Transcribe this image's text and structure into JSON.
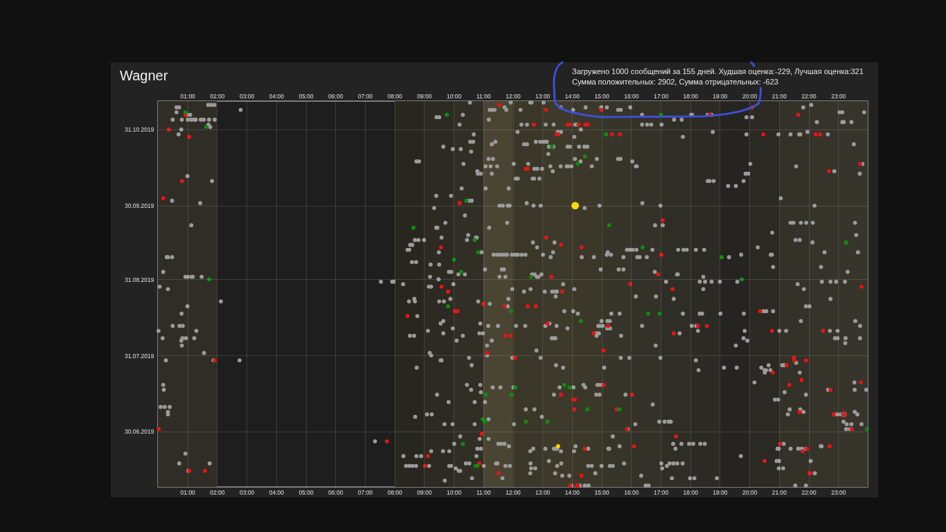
{
  "chart_data": {
    "type": "scatter",
    "orientation": "horizontal",
    "title": "Wagner",
    "annotations": [
      "Загружено 1000 сообщений за 155 дней. Худшая оценка:-229, Лучшая оценка:321",
      "Сумма положительных: 2902, Сумма отрицательных: -623"
    ],
    "xlim": [
      0,
      24
    ],
    "xticks": [
      {
        "value": 1,
        "label": "01:00"
      },
      {
        "value": 2,
        "label": "02:00"
      },
      {
        "value": 3,
        "label": "03:00"
      },
      {
        "value": 4,
        "label": "04:00"
      },
      {
        "value": 5,
        "label": "05:00"
      },
      {
        "value": 6,
        "label": "06:00"
      },
      {
        "value": 7,
        "label": "07:00"
      },
      {
        "value": 8,
        "label": "08:00"
      },
      {
        "value": 9,
        "label": "09:00"
      },
      {
        "value": 10,
        "label": "10:00"
      },
      {
        "value": 11,
        "label": "11:00"
      },
      {
        "value": 12,
        "label": "12:00"
      },
      {
        "value": 13,
        "label": "13:00"
      },
      {
        "value": 14,
        "label": "14:00"
      },
      {
        "value": 15,
        "label": "15:00"
      },
      {
        "value": 16,
        "label": "16:00"
      },
      {
        "value": 17,
        "label": "17:00"
      },
      {
        "value": 18,
        "label": "18:00"
      },
      {
        "value": 19,
        "label": "19:00"
      },
      {
        "value": 20,
        "label": "20:00"
      },
      {
        "value": 21,
        "label": "21:00"
      },
      {
        "value": 22,
        "label": "22:00"
      },
      {
        "value": 23,
        "label": "23:00"
      }
    ],
    "x2lim": [
      0,
      24
    ],
    "x2ticks": [
      {
        "value": 1,
        "label": "01:00"
      },
      {
        "value": 2,
        "label": "02:00"
      },
      {
        "value": 3,
        "label": "03:00"
      },
      {
        "value": 4,
        "label": "04:00"
      },
      {
        "value": 5,
        "label": "05:00"
      },
      {
        "value": 6,
        "label": "06:00"
      },
      {
        "value": 7,
        "label": "07:00"
      },
      {
        "value": 8,
        "label": "08:00"
      },
      {
        "value": 9,
        "label": "09:00"
      },
      {
        "value": 10,
        "label": "10:00"
      },
      {
        "value": 11,
        "label": "11:00"
      },
      {
        "value": 12,
        "label": "12:00"
      },
      {
        "value": 13,
        "label": "13:00"
      },
      {
        "value": 14,
        "label": "14:00"
      },
      {
        "value": 15,
        "label": "15:00"
      },
      {
        "value": 16,
        "label": "16:00"
      },
      {
        "value": 17,
        "label": "17:00"
      },
      {
        "value": 18,
        "label": "18:00"
      },
      {
        "value": 19,
        "label": "19:00"
      },
      {
        "value": 20,
        "label": "20:00"
      },
      {
        "value": 21,
        "label": "21:00"
      },
      {
        "value": 22,
        "label": "22:00"
      },
      {
        "value": 23,
        "label": "23:00"
      }
    ],
    "ylim": [
      "2019-06-07T10:00",
      "2019-11-11T13:00"
    ],
    "yticks": [
      {
        "value": "2019-06-30",
        "label": "30.06.2019"
      },
      {
        "value": "2019-07-31",
        "label": "31.07.2019"
      },
      {
        "value": "2019-08-31",
        "label": "31.08.2019"
      },
      {
        "value": "2019-09-30",
        "label": "30.09.2019"
      },
      {
        "value": "2019-10-31",
        "label": "31.10.2019"
      }
    ],
    "grid": true,
    "marker": "circle",
    "bands": [
      {
        "axis": "x",
        "from": 0,
        "to": 2,
        "color": "#2f2d26"
      },
      {
        "axis": "x",
        "from": 8,
        "to": 9,
        "color": "#28271f"
      },
      {
        "axis": "x",
        "from": 9,
        "to": 10,
        "color": "#2c2a22"
      },
      {
        "axis": "x",
        "from": 10,
        "to": 11,
        "color": "#302e25"
      },
      {
        "axis": "x",
        "from": 11,
        "to": 12,
        "color": "#4a4533"
      },
      {
        "axis": "x",
        "from": 12,
        "to": 13,
        "color": "#3a3729"
      },
      {
        "axis": "x",
        "from": 13,
        "to": 14,
        "color": "#3d3a2b"
      },
      {
        "axis": "x",
        "from": 14,
        "to": 15,
        "color": "#3b382a"
      },
      {
        "axis": "x",
        "from": 15,
        "to": 16,
        "color": "#37352a"
      },
      {
        "axis": "x",
        "from": 16,
        "to": 17,
        "color": "#333128"
      },
      {
        "axis": "x",
        "from": 17,
        "to": 18,
        "color": "#2f2e26"
      },
      {
        "axis": "x",
        "from": 18,
        "to": 19,
        "color": "#2b2a24"
      },
      {
        "axis": "x",
        "from": 19,
        "to": 20,
        "color": "#252421"
      },
      {
        "axis": "x",
        "from": 20,
        "to": 21,
        "color": "#2a2923"
      },
      {
        "axis": "x",
        "from": 21,
        "to": 22,
        "color": "#333128"
      },
      {
        "axis": "x",
        "from": 22,
        "to": 23,
        "color": "#36342a"
      },
      {
        "axis": "x",
        "from": 23,
        "to": 24,
        "color": "#37352b"
      }
    ],
    "series": [
      {
        "color": "#9b9b9b",
        "values": [
          10.55,
          11.93,
          12.59,
          12.63,
          13.04,
          1.7,
          1.8,
          1.91,
          22.09,
          0.63,
          0.72,
          11.72,
          13.62,
          14.46,
          14.99,
          15.18,
          15.97,
          21.82,
          2.8,
          11.22,
          11.3,
          11.38,
          11.78,
          12.26,
          14.04,
          15.56,
          15.65,
          0.63,
          23.05,
          23.14,
          23.88,
          0.97,
          1.09,
          10.31,
          16.37,
          18.03,
          18.06,
          18.59,
          18.72,
          9.42,
          9.51,
          19.9,
          20.09,
          0.5,
          0.81,
          1.01,
          1.12,
          1.22,
          1.28,
          1.45,
          1.55,
          1.73,
          1.92,
          11.19,
          17.45,
          17.71,
          22.28,
          23.14,
          23.19,
          23.45,
          1.71,
          10.2,
          12.29,
          12.48,
          13.11,
          13.38,
          14.11,
          14.17,
          16.37,
          16.54,
          16.68,
          17.03,
          1.77,
          0.79,
          14.3,
          12.16,
          13.52,
          13.63,
          18.76,
          21.96,
          0.7,
          10.68,
          19.9,
          20.98,
          21.39,
          21.68,
          21.72,
          22.65,
          14.08,
          17.75,
          10.56,
          10.66,
          11.41,
          12.78,
          12.93,
          13.05,
          13.15,
          11.29,
          12.38,
          12.48,
          23.53,
          9.65,
          13.22,
          13.37,
          13.85,
          13.93,
          14.24,
          14.42,
          14.52,
          9.97,
          10.24,
          10.59,
          13.2,
          11.18,
          11.33,
          14.1,
          14.84,
          15.56,
          15.64,
          8.74,
          8.83,
          14.29,
          16.04,
          10.33,
          12.03,
          12.52,
          20.03,
          23.82,
          11.08,
          11.25,
          11.47,
          13.27,
          13.62,
          13.82,
          13.87,
          13.98,
          14.67,
          16.16,
          16.19,
          21.58,
          12.73,
          12.83,
          12.99,
          10.8,
          13.35,
          22.87,
          10.82,
          10.92,
          11.29,
          19.87,
          19.96,
          23.73,
          1.0,
          12.1,
          12.17,
          12.67,
          12.72,
          12.9,
          1.83,
          18.59,
          18.65,
          18.79,
          19.8,
          19.28,
          19.54,
          10.27,
          11.08,
          11.86,
          9.41,
          9.91,
          21.06,
          0.48,
          10.52,
          10.61,
          1.43,
          12.47,
          16.38,
          11.55,
          11.66,
          11.83,
          11.89,
          12.7,
          12.94,
          14.93,
          16.99,
          22.2,
          9.34,
          14.43,
          10.38,
          9.72,
          11.81,
          21.39,
          21.49,
          21.74,
          21.92,
          22.14,
          23.57,
          1.13,
          16.81,
          17.07,
          9.41,
          9.45,
          11.2,
          20.77,
          10.49,
          23.61,
          9.59,
          10.75,
          10.78,
          8.69,
          8.81,
          9.0,
          10.45,
          21.56,
          21.7,
          12.68,
          13.41,
          22.13,
          8.53,
          8.6,
          12.82,
          20.28,
          8.44,
          8.5,
          15.86,
          15.95,
          16.05,
          16.18,
          16.72,
          17.59,
          17.77,
          17.88,
          18.19,
          18.47,
          9.5,
          10.94,
          13.36,
          15.21,
          22.54,
          23.67,
          11.35,
          11.47,
          11.58,
          11.7,
          11.8,
          11.97,
          12.09,
          12.17,
          12.3,
          12.43,
          13.02,
          15.18,
          15.32,
          19.72,
          20.72,
          20.76,
          0.3,
          0.34,
          0.48,
          13.28,
          14.33,
          14.74,
          15.74,
          16.21,
          16.29,
          16.53,
          19.31,
          8.59,
          8.73,
          9.22,
          9.51,
          20.8,
          22.42,
          11.06,
          11.63,
          11.7,
          14.97,
          15.58,
          15.74,
          0.18,
          9.84,
          9.92,
          16.8,
          23.32,
          10.16,
          10.38,
          12.65,
          12.74,
          12.97,
          17.55,
          17.58,
          0.93,
          1.01,
          1.14,
          1.18,
          1.48,
          9.2,
          11.55,
          11.75,
          12.81,
          12.87,
          18.44,
          9.49,
          7.54,
          7.92,
          7.97,
          17.18,
          18.32,
          18.5,
          18.72,
          19.0,
          19.59,
          22.45,
          22.74,
          22.93,
          23.23,
          8.29,
          9.99,
          13.7,
          21.63,
          0.06,
          9.16,
          9.24,
          0.34,
          11.98,
          12.6,
          14.08,
          18.44,
          21.84,
          12.38,
          13.08,
          13.33,
          13.43,
          13.49,
          13.45,
          16.16,
          16.84,
          8.67,
          9.89,
          11.85,
          17.44,
          22.74,
          2.13,
          8.49,
          8.69,
          9.51,
          9.67,
          10.83,
          11.22,
          1.0,
          11.83,
          21.91,
          22.03,
          13.74,
          14.04,
          20.47,
          20.57,
          20.8,
          0.8,
          14.2,
          15.33,
          15.61,
          17.75,
          18.32,
          18.4,
          19.02,
          19.81,
          8.77,
          9.65,
          15.0,
          15.2,
          15.28,
          21.74,
          23.58,
          9.56,
          10.9,
          13.24,
          0.5,
          0.73,
          0.84,
          11.17,
          11.5,
          12.11,
          12.42,
          13.1,
          13.48,
          14.89,
          14.95,
          15.04,
          16.37,
          18.05,
          18.2,
          23.74,
          9.97,
          13.85,
          15.19,
          15.29,
          0.02,
          1.3,
          9.13,
          18.26,
          19.84,
          21.01,
          21.24,
          22.72,
          22.98,
          9.65,
          10.87,
          10.99,
          14.82,
          14.91,
          17.64,
          8.52,
          8.66,
          10.31,
          14.83,
          15.66,
          0.16,
          0.83,
          0.95,
          1.23,
          13.32,
          13.39,
          13.44,
          19.8,
          22.89,
          22.98,
          23.25,
          23.74,
          0.79,
          10.1,
          11.29,
          19.93,
          23.24,
          0.81,
          11.13,
          16.83,
          19.54,
          12.8,
          1.56,
          9.19,
          9.24,
          11.13,
          10.52,
          11.98,
          12.94,
          15.65,
          15.94,
          16.99,
          0.27,
          1.88,
          2.76,
          9.56,
          9.59,
          18.19,
          21.58,
          10.61,
          13.46,
          20.65,
          21.11,
          21.17,
          8.75,
          13.7,
          15.09,
          19.14,
          19.57,
          20.4,
          18.28,
          20.51,
          20.56,
          20.71,
          20.52,
          21.7,
          20.17,
          23.55,
          0.18,
          10.45,
          10.9,
          14.39,
          14.86,
          14.9,
          15.0,
          11.32,
          11.58,
          12.02,
          13.58,
          14.05,
          14.45,
          0.2,
          10.59,
          22.66,
          23.56,
          23.95,
          10.92,
          21.19,
          9.44,
          13.39,
          14.82,
          14.93,
          15.81,
          21.91,
          20.86,
          20.97,
          9.83,
          10.71,
          11.06,
          16.73,
          0.09,
          0.23,
          0.4,
          12.44,
          12.73,
          21.36,
          21.72,
          0.34,
          21.83,
          23.56,
          0.34,
          9.1,
          9.26,
          21.3,
          22.95,
          23.08,
          23.65,
          8.7,
          12.98,
          11.18,
          16.95,
          17.13,
          17.27,
          17.34,
          23.18,
          9.69,
          9.96,
          10.71,
          12.04,
          16.14,
          23.29,
          23.45,
          23.79,
          15.89,
          23.27,
          23.4,
          10.22,
          15.38,
          10.88,
          11.18,
          7.34,
          10.02,
          11.51,
          11.6,
          11.72,
          17.42,
          17.7,
          17.96,
          18.1,
          18.34,
          18.49,
          21.16,
          11.87,
          14.12,
          15.61,
          22.41,
          22.44,
          10.8,
          10.92,
          12.69,
          13.1,
          13.39,
          13.45,
          13.5,
          14.55,
          15.23,
          15.26,
          17.5,
          20.95,
          20.99,
          21.39,
          21.65,
          21.77,
          21.91,
          9.24,
          9.64,
          9.85,
          12.59,
          13.63,
          14.07,
          0.93,
          8.3,
          8.74,
          8.9,
          10.77,
          19.71,
          13.22,
          20.92,
          21.0,
          22.07,
          0.72,
          1.75,
          10.41,
          10.53,
          11.43,
          11.48,
          12.6,
          13.64,
          15.76,
          17.02,
          17.3,
          17.43,
          17.56,
          17.74,
          8.39,
          8.5,
          8.61,
          8.73,
          9.17,
          9.85,
          9.91,
          11.02,
          11.75,
          11.9,
          13.5,
          14.55,
          14.67,
          15.0,
          15.28,
          15.38,
          17.21,
          10.07,
          12.62,
          12.76,
          17.05,
          20.99,
          21.14,
          1.03,
          10.17,
          10.22,
          12.59,
          13.43,
          14.79,
          22.21,
          13.67,
          13.91,
          16.34,
          10.62,
          11.65,
          17.38,
          17.99,
          18.14,
          18.9,
          9.7,
          13.98,
          14.26,
          14.43,
          14.56,
          16.49,
          16.59,
          21.55,
          21.91
        ],
        "x": [
          "2019-11-11",
          "2019-11-11",
          "2019-11-11",
          "2019-11-11",
          "2019-11-11",
          "2019-11-10",
          "2019-11-10",
          "2019-11-10",
          "2019-11-10",
          "2019-11-09",
          "2019-11-09",
          "2019-11-09",
          "2019-11-09",
          "2019-11-09",
          "2019-11-09",
          "2019-11-09",
          "2019-11-09",
          "2019-11-09",
          "2019-11-08",
          "2019-11-08",
          "2019-11-08",
          "2019-11-08",
          "2019-11-08",
          "2019-11-08",
          "2019-11-08",
          "2019-11-08",
          "2019-11-08",
          "2019-11-07",
          "2019-11-07",
          "2019-11-07",
          "2019-11-07",
          "2019-11-06",
          "2019-11-06",
          "2019-11-06",
          "2019-11-06",
          "2019-11-06",
          "2019-11-06",
          "2019-11-06",
          "2019-11-06",
          "2019-11-05",
          "2019-11-05",
          "2019-11-05",
          "2019-11-05",
          "2019-11-04",
          "2019-11-04",
          "2019-11-04",
          "2019-11-04",
          "2019-11-04",
          "2019-11-04",
          "2019-11-04",
          "2019-11-04",
          "2019-11-04",
          "2019-11-04",
          "2019-11-04",
          "2019-11-04",
          "2019-11-04",
          "2019-11-03",
          "2019-11-03",
          "2019-11-03",
          "2019-11-03",
          "2019-11-02",
          "2019-11-02",
          "2019-11-02",
          "2019-11-02",
          "2019-11-02",
          "2019-11-02",
          "2019-11-02",
          "2019-11-02",
          "2019-11-02",
          "2019-11-02",
          "2019-11-02",
          "2019-11-02",
          "2019-11-01",
          "2019-10-31",
          "2019-10-31",
          "2019-10-30",
          "2019-10-30",
          "2019-10-30",
          "2019-10-30",
          "2019-10-30",
          "2019-10-29",
          "2019-10-29",
          "2019-10-29",
          "2019-10-29",
          "2019-10-29",
          "2019-10-29",
          "2019-10-29",
          "2019-10-29",
          "2019-10-28",
          "2019-10-28",
          "2019-10-26",
          "2019-10-26",
          "2019-10-26",
          "2019-10-26",
          "2019-10-26",
          "2019-10-26",
          "2019-10-26",
          "2019-10-25",
          "2019-10-25",
          "2019-10-25",
          "2019-10-25",
          "2019-10-24",
          "2019-10-24",
          "2019-10-24",
          "2019-10-24",
          "2019-10-24",
          "2019-10-24",
          "2019-10-24",
          "2019-10-24",
          "2019-10-23",
          "2019-10-23",
          "2019-10-22",
          "2019-10-21",
          "2019-10-19",
          "2019-10-19",
          "2019-10-19",
          "2019-10-19",
          "2019-10-19",
          "2019-10-19",
          "2019-10-18",
          "2019-10-18",
          "2019-10-18",
          "2019-10-18",
          "2019-10-17",
          "2019-10-17",
          "2019-10-17",
          "2019-10-17",
          "2019-10-17",
          "2019-10-16",
          "2019-10-16",
          "2019-10-16",
          "2019-10-16",
          "2019-10-16",
          "2019-10-16",
          "2019-10-16",
          "2019-10-16",
          "2019-10-16",
          "2019-10-16",
          "2019-10-16",
          "2019-10-16",
          "2019-10-15",
          "2019-10-15",
          "2019-10-15",
          "2019-10-14",
          "2019-10-14",
          "2019-10-14",
          "2019-10-13",
          "2019-10-13",
          "2019-10-13",
          "2019-10-13",
          "2019-10-13",
          "2019-10-13",
          "2019-10-12",
          "2019-10-11",
          "2019-10-11",
          "2019-10-11",
          "2019-10-11",
          "2019-10-11",
          "2019-10-10",
          "2019-10-10",
          "2019-10-10",
          "2019-10-10",
          "2019-10-10",
          "2019-10-08",
          "2019-10-08",
          "2019-10-07",
          "2019-10-07",
          "2019-10-07",
          "2019-10-04",
          "2019-10-04",
          "2019-10-03",
          "2019-10-02",
          "2019-10-02",
          "2019-10-02",
          "2019-10-01",
          "2019-10-01",
          "2019-10-01",
          "2019-09-30",
          "2019-09-30",
          "2019-09-30",
          "2019-09-30",
          "2019-09-30",
          "2019-09-30",
          "2019-09-30",
          "2019-09-30",
          "2019-09-30",
          "2019-09-29",
          "2019-09-29",
          "2019-09-26",
          "2019-09-23",
          "2019-09-23",
          "2019-09-23",
          "2019-09-23",
          "2019-09-23",
          "2019-09-23",
          "2019-09-23",
          "2019-09-23",
          "2019-09-22",
          "2019-09-22",
          "2019-09-22",
          "2019-09-21",
          "2019-09-21",
          "2019-09-21",
          "2019-09-19",
          "2019-09-18",
          "2019-09-18",
          "2019-09-17",
          "2019-09-17",
          "2019-09-17",
          "2019-09-16",
          "2019-09-16",
          "2019-09-16",
          "2019-09-16",
          "2019-09-16",
          "2019-09-16",
          "2019-09-15",
          "2019-09-15",
          "2019-09-15",
          "2019-09-14",
          "2019-09-14",
          "2019-09-13",
          "2019-09-13",
          "2019-09-12",
          "2019-09-12",
          "2019-09-12",
          "2019-09-12",
          "2019-09-12",
          "2019-09-12",
          "2019-09-12",
          "2019-09-12",
          "2019-09-12",
          "2019-09-12",
          "2019-09-12",
          "2019-09-12",
          "2019-09-11",
          "2019-09-11",
          "2019-09-11",
          "2019-09-11",
          "2019-09-11",
          "2019-09-11",
          "2019-09-10",
          "2019-09-10",
          "2019-09-10",
          "2019-09-10",
          "2019-09-10",
          "2019-09-10",
          "2019-09-10",
          "2019-09-10",
          "2019-09-10",
          "2019-09-10",
          "2019-09-10",
          "2019-09-10",
          "2019-09-10",
          "2019-09-10",
          "2019-09-10",
          "2019-09-10",
          "2019-09-09",
          "2019-09-09",
          "2019-09-09",
          "2019-09-09",
          "2019-09-09",
          "2019-09-09",
          "2019-09-09",
          "2019-09-09",
          "2019-09-09",
          "2019-09-09",
          "2019-09-09",
          "2019-09-07",
          "2019-09-07",
          "2019-09-06",
          "2019-09-06",
          "2019-09-05",
          "2019-09-05",
          "2019-09-04",
          "2019-09-04",
          "2019-09-04",
          "2019-09-04",
          "2019-09-04",
          "2019-09-04",
          "2019-09-03",
          "2019-09-03",
          "2019-09-03",
          "2019-09-03",
          "2019-09-03",
          "2019-09-02",
          "2019-09-02",
          "2019-09-02",
          "2019-09-02",
          "2019-09-02",
          "2019-09-02",
          "2019-09-02",
          "2019-09-01",
          "2019-09-01",
          "2019-09-01",
          "2019-09-01",
          "2019-09-01",
          "2019-09-01",
          "2019-09-01",
          "2019-09-01",
          "2019-09-01",
          "2019-09-01",
          "2019-09-01",
          "2019-08-31",
          "2019-08-30",
          "2019-08-30",
          "2019-08-30",
          "2019-08-30",
          "2019-08-30",
          "2019-08-30",
          "2019-08-30",
          "2019-08-30",
          "2019-08-30",
          "2019-08-30",
          "2019-08-30",
          "2019-08-30",
          "2019-08-30",
          "2019-08-29",
          "2019-08-29",
          "2019-08-29",
          "2019-08-29",
          "2019-08-28",
          "2019-08-28",
          "2019-08-28",
          "2019-08-27",
          "2019-08-27",
          "2019-08-27",
          "2019-08-27",
          "2019-08-27",
          "2019-08-27",
          "2019-08-26",
          "2019-08-26",
          "2019-08-26",
          "2019-08-26",
          "2019-08-26",
          "2019-08-24",
          "2019-08-24",
          "2019-08-24",
          "2019-08-23",
          "2019-08-23",
          "2019-08-23",
          "2019-08-23",
          "2019-08-23",
          "2019-08-22",
          "2019-08-22",
          "2019-08-22",
          "2019-08-22",
          "2019-08-22",
          "2019-08-22",
          "2019-08-21",
          "2019-08-20",
          "2019-08-20",
          "2019-08-20",
          "2019-08-20",
          "2019-08-18",
          "2019-08-18",
          "2019-08-18",
          "2019-08-18",
          "2019-08-18",
          "2019-08-17",
          "2019-08-17",
          "2019-08-17",
          "2019-08-17",
          "2019-08-17",
          "2019-08-17",
          "2019-08-17",
          "2019-08-17",
          "2019-08-17",
          "2019-08-16",
          "2019-08-14",
          "2019-08-14",
          "2019-08-14",
          "2019-08-14",
          "2019-08-14",
          "2019-08-14",
          "2019-08-13",
          "2019-08-13",
          "2019-08-13",
          "2019-08-12",
          "2019-08-12",
          "2019-08-12",
          "2019-08-12",
          "2019-08-12",
          "2019-08-12",
          "2019-08-12",
          "2019-08-12",
          "2019-08-12",
          "2019-08-12",
          "2019-08-12",
          "2019-08-12",
          "2019-08-12",
          "2019-08-12",
          "2019-08-12",
          "2019-08-12",
          "2019-08-11",
          "2019-08-11",
          "2019-08-11",
          "2019-08-11",
          "2019-08-10",
          "2019-08-10",
          "2019-08-10",
          "2019-08-10",
          "2019-08-10",
          "2019-08-10",
          "2019-08-10",
          "2019-08-10",
          "2019-08-10",
          "2019-08-09",
          "2019-08-09",
          "2019-08-09",
          "2019-08-09",
          "2019-08-09",
          "2019-08-09",
          "2019-08-08",
          "2019-08-08",
          "2019-08-08",
          "2019-08-08",
          "2019-08-08",
          "2019-08-07",
          "2019-08-07",
          "2019-08-07",
          "2019-08-07",
          "2019-08-07",
          "2019-08-07",
          "2019-08-07",
          "2019-08-07",
          "2019-08-07",
          "2019-08-07",
          "2019-08-07",
          "2019-08-07",
          "2019-08-06",
          "2019-08-06",
          "2019-08-06",
          "2019-08-06",
          "2019-08-05",
          "2019-08-04",
          "2019-08-04",
          "2019-08-04",
          "2019-08-04",
          "2019-08-02",
          "2019-08-01",
          "2019-08-01",
          "2019-07-31",
          "2019-07-31",
          "2019-07-30",
          "2019-07-30",
          "2019-07-30",
          "2019-07-30",
          "2019-07-30",
          "2019-07-30",
          "2019-07-29",
          "2019-07-29",
          "2019-07-29",
          "2019-07-29",
          "2019-07-29",
          "2019-07-29",
          "2019-07-28",
          "2019-07-27",
          "2019-07-27",
          "2019-07-27",
          "2019-07-27",
          "2019-07-27",
          "2019-07-26",
          "2019-07-26",
          "2019-07-26",
          "2019-07-26",
          "2019-07-26",
          "2019-07-26",
          "2019-07-25",
          "2019-07-25",
          "2019-07-25",
          "2019-07-25",
          "2019-07-24",
          "2019-07-24",
          "2019-07-20",
          "2019-07-20",
          "2019-07-19",
          "2019-07-19",
          "2019-07-19",
          "2019-07-19",
          "2019-07-19",
          "2019-07-19",
          "2019-07-19",
          "2019-07-18",
          "2019-07-18",
          "2019-07-18",
          "2019-07-18",
          "2019-07-18",
          "2019-07-18",
          "2019-07-17",
          "2019-07-17",
          "2019-07-17",
          "2019-07-17",
          "2019-07-17",
          "2019-07-16",
          "2019-07-16",
          "2019-07-15",
          "2019-07-15",
          "2019-07-15",
          "2019-07-15",
          "2019-07-15",
          "2019-07-15",
          "2019-07-13",
          "2019-07-13",
          "2019-07-12",
          "2019-07-12",
          "2019-07-12",
          "2019-07-11",
          "2019-07-10",
          "2019-07-10",
          "2019-07-10",
          "2019-07-09",
          "2019-07-09",
          "2019-07-09",
          "2019-07-09",
          "2019-07-08",
          "2019-07-08",
          "2019-07-08",
          "2019-07-07",
          "2019-07-07",
          "2019-07-07",
          "2019-07-07",
          "2019-07-07",
          "2019-07-07",
          "2019-07-07",
          "2019-07-06",
          "2019-07-06",
          "2019-07-05",
          "2019-07-04",
          "2019-07-04",
          "2019-07-04",
          "2019-07-04",
          "2019-07-04",
          "2019-07-03",
          "2019-07-03",
          "2019-07-03",
          "2019-07-03",
          "2019-07-03",
          "2019-07-03",
          "2019-07-03",
          "2019-07-03",
          "2019-07-01",
          "2019-07-01",
          "2019-07-01",
          "2019-06-28",
          "2019-06-28",
          "2019-06-27",
          "2019-06-27",
          "2019-06-26",
          "2019-06-25",
          "2019-06-25",
          "2019-06-25",
          "2019-06-25",
          "2019-06-25",
          "2019-06-25",
          "2019-06-25",
          "2019-06-25",
          "2019-06-25",
          "2019-06-25",
          "2019-06-25",
          "2019-06-24",
          "2019-06-24",
          "2019-06-24",
          "2019-06-24",
          "2019-06-24",
          "2019-06-23",
          "2019-06-23",
          "2019-06-23",
          "2019-06-23",
          "2019-06-23",
          "2019-06-23",
          "2019-06-23",
          "2019-06-23",
          "2019-06-23",
          "2019-06-23",
          "2019-06-23",
          "2019-06-23",
          "2019-06-23",
          "2019-06-23",
          "2019-06-23",
          "2019-06-23",
          "2019-06-23",
          "2019-06-22",
          "2019-06-22",
          "2019-06-22",
          "2019-06-22",
          "2019-06-22",
          "2019-06-22",
          "2019-06-21",
          "2019-06-20",
          "2019-06-20",
          "2019-06-20",
          "2019-06-20",
          "2019-06-20",
          "2019-06-18",
          "2019-06-18",
          "2019-06-18",
          "2019-06-18",
          "2019-06-17",
          "2019-06-17",
          "2019-06-17",
          "2019-06-17",
          "2019-06-17",
          "2019-06-17",
          "2019-06-17",
          "2019-06-17",
          "2019-06-17",
          "2019-06-17",
          "2019-06-17",
          "2019-06-17",
          "2019-06-17",
          "2019-06-17",
          "2019-06-16",
          "2019-06-16",
          "2019-06-16",
          "2019-06-16",
          "2019-06-16",
          "2019-06-16",
          "2019-06-16",
          "2019-06-16",
          "2019-06-16",
          "2019-06-16",
          "2019-06-16",
          "2019-06-16",
          "2019-06-16",
          "2019-06-16",
          "2019-06-16",
          "2019-06-16",
          "2019-06-16",
          "2019-06-15",
          "2019-06-15",
          "2019-06-15",
          "2019-06-15",
          "2019-06-15",
          "2019-06-15",
          "2019-06-14",
          "2019-06-14",
          "2019-06-14",
          "2019-06-13",
          "2019-06-13",
          "2019-06-13",
          "2019-06-13",
          "2019-06-12",
          "2019-06-12",
          "2019-06-12",
          "2019-06-11",
          "2019-06-11",
          "2019-06-11",
          "2019-06-11",
          "2019-06-11",
          "2019-06-11",
          "2019-06-10",
          "2019-06-08",
          "2019-06-08",
          "2019-06-08",
          "2019-06-08",
          "2019-06-08",
          "2019-06-08",
          "2019-06-08",
          "2019-06-08"
        ]
      },
      {
        "color": "#e81414",
        "values": [
          11.54,
          20.1,
          13.12,
          15.0,
          0.93,
          18.66,
          21.65,
          12.71,
          13.86,
          13.93,
          14.22,
          14.45,
          14.53,
          0.37,
          13.49,
          13.53,
          15.36,
          15.63,
          20.47,
          22.24,
          22.39,
          1.06,
          23.75,
          12.44,
          12.5,
          22.69,
          0.82,
          0.18,
          10.2,
          17.07,
          13.13,
          13.63,
          9.57,
          14.32,
          17.02,
          16.91,
          13.3,
          15.97,
          9.59,
          23.79,
          17.4,
          9.81,
          13.67,
          11.0,
          11.72,
          12.5,
          12.78,
          10.05,
          10.13,
          20.37,
          8.44,
          13.18,
          15.22,
          18.26,
          18.56,
          20.76,
          22.49,
          14.73,
          17.44,
          11.75,
          11.93,
          15.07,
          11.13,
          12.07,
          21.5,
          1.92,
          21.52,
          21.91,
          21.26,
          20.79,
          21.76,
          23.77,
          15.07,
          21.35,
          22.74,
          13.63,
          16.03,
          14.05,
          14.1,
          14.08,
          15.51,
          21.7,
          22.85,
          0.03,
          15.86,
          23.46,
          10.95,
          17.52,
          7.74,
          21.04,
          16.1,
          22.71,
          14.43,
          21.94,
          21.8,
          9.13,
          20.51,
          10.87,
          9.03,
          1.06,
          1.59,
          11.52,
          22.03,
          22.06,
          14.32,
          13.94,
          14.17,
          14.2
        ],
        "x": [
          "2019-11-10",
          "2019-11-09",
          "2019-11-08",
          "2019-11-08",
          "2019-11-06",
          "2019-11-06",
          "2019-11-06",
          "2019-11-02",
          "2019-11-02",
          "2019-11-02",
          "2019-11-02",
          "2019-11-02",
          "2019-11-02",
          "2019-10-31",
          "2019-10-29",
          "2019-10-29",
          "2019-10-29",
          "2019-10-29",
          "2019-10-29",
          "2019-10-29",
          "2019-10-29",
          "2019-10-28",
          "2019-10-17",
          "2019-10-15",
          "2019-10-15",
          "2019-10-14",
          "2019-10-10",
          "2019-10-03",
          "2019-10-01",
          "2019-09-24",
          "2019-09-17",
          "2019-09-14",
          "2019-09-13",
          "2019-09-13",
          "2019-09-10",
          "2019-09-02",
          "2019-09-01",
          "2019-08-29",
          "2019-08-28",
          "2019-08-28",
          "2019-08-27",
          "2019-08-26",
          "2019-08-26",
          "2019-08-21",
          "2019-08-20",
          "2019-08-20",
          "2019-08-20",
          "2019-08-18",
          "2019-08-18",
          "2019-08-18",
          "2019-08-16",
          "2019-08-13",
          "2019-08-12",
          "2019-08-12",
          "2019-08-12",
          "2019-08-10",
          "2019-08-10",
          "2019-08-09",
          "2019-08-09",
          "2019-08-08",
          "2019-08-08",
          "2019-08-02",
          "2019-08-01",
          "2019-07-30",
          "2019-07-30",
          "2019-07-29",
          "2019-07-29",
          "2019-07-29",
          "2019-07-27",
          "2019-07-24",
          "2019-07-21",
          "2019-07-20",
          "2019-07-19",
          "2019-07-19",
          "2019-07-17",
          "2019-07-15",
          "2019-07-15",
          "2019-07-13",
          "2019-07-13",
          "2019-07-09",
          "2019-07-09",
          "2019-07-08",
          "2019-07-07",
          "2019-07-01",
          "2019-07-01",
          "2019-07-01",
          "2019-06-29",
          "2019-06-28",
          "2019-06-26",
          "2019-06-25",
          "2019-06-24",
          "2019-06-24",
          "2019-06-23",
          "2019-06-23",
          "2019-06-22",
          "2019-06-20",
          "2019-06-18",
          "2019-06-17",
          "2019-06-16",
          "2019-06-14",
          "2019-06-14",
          "2019-06-13",
          "2019-06-13",
          "2019-06-13",
          "2019-06-12",
          "2019-06-08",
          "2019-06-08",
          "2019-06-08"
        ]
      },
      {
        "color": "#0e8c0e",
        "values": [
          0.93,
          9.77,
          17.01,
          1.63,
          15.15,
          13.32,
          14.44,
          14.2,
          10.43,
          15.26,
          8.64,
          10.71,
          23.27,
          16.39,
          10.83,
          19.06,
          10.01,
          10.25,
          12.62,
          1.73,
          19.74,
          9.81,
          11.94,
          16.58,
          16.96,
          14.3,
          13.74,
          12.08,
          13.92,
          11.08,
          11.95,
          14.52,
          15.61,
          10.98,
          11.06,
          12.44,
          13.17,
          23.98,
          10.31,
          10.74,
          10.8
        ],
        "x": [
          "2019-11-07",
          "2019-11-06",
          "2019-11-06",
          "2019-11-01",
          "2019-10-29",
          "2019-10-24",
          "2019-10-20",
          "2019-10-17",
          "2019-10-02",
          "2019-09-22",
          "2019-09-21",
          "2019-09-16",
          "2019-09-15",
          "2019-09-13",
          "2019-09-11",
          "2019-09-09",
          "2019-09-08",
          "2019-09-03",
          "2019-09-01",
          "2019-08-31",
          "2019-08-31",
          "2019-08-20",
          "2019-08-18",
          "2019-08-17",
          "2019-08-17",
          "2019-08-14",
          "2019-07-19",
          "2019-07-18",
          "2019-07-18",
          "2019-07-15",
          "2019-07-15",
          "2019-07-09",
          "2019-07-09",
          "2019-07-05",
          "2019-07-04",
          "2019-07-04",
          "2019-07-04",
          "2019-07-01",
          "2019-06-25",
          "2019-06-16",
          "2019-06-16"
        ]
      },
      {
        "color": "#ffd700",
        "values": [
          13.53
        ],
        "x": [
          "2019-06-24"
        ]
      },
      {
        "type": "bubble",
        "colors": [
          "#ffd700",
          "#b83232"
        ],
        "sizes": [
          1,
          0.7
        ],
        "values": [
          14.11,
          23.2
        ],
        "x": [
          "2019-09-30",
          "2019-07-07"
        ]
      }
    ]
  }
}
